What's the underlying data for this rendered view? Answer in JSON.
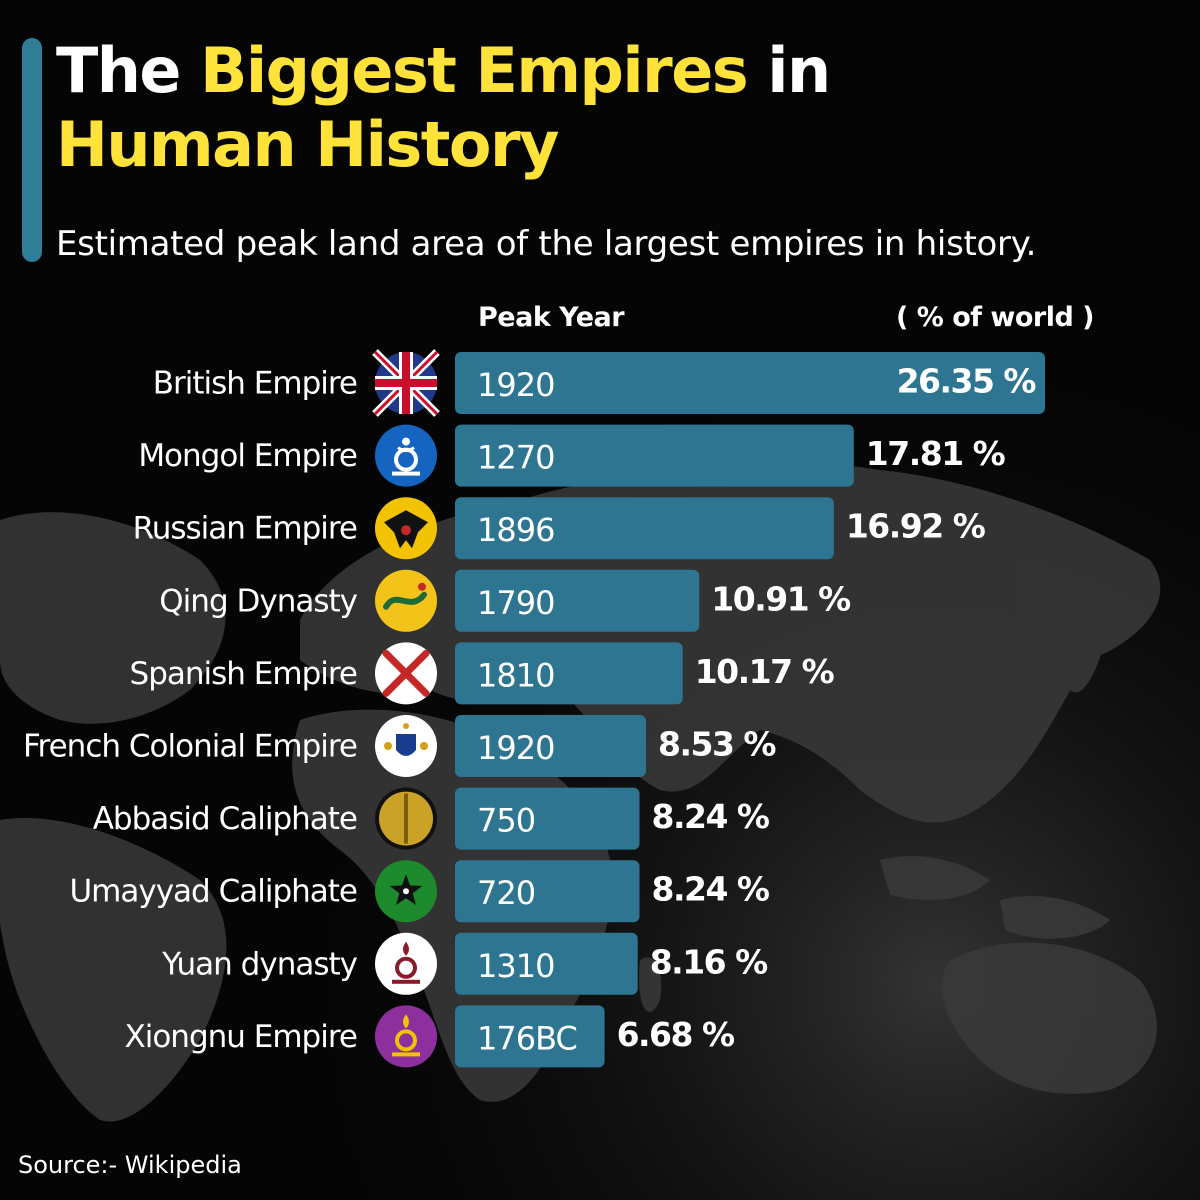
{
  "title": {
    "part1": "The ",
    "part2": "Biggest Empires",
    "part3": " in",
    "part4": "Human History"
  },
  "subtitle": "Estimated peak land area of the largest empires in history.",
  "column_headers": {
    "peak_year": "Peak Year",
    "percent": "( % of world )"
  },
  "source": "Source:- Wikipedia",
  "colors": {
    "bar": "#2d7590",
    "title_accent": "#ffe23a",
    "side_accent": "#2f7d99",
    "background": "#050505",
    "map": "#3a3a3a"
  },
  "chart_data": {
    "type": "bar",
    "orientation": "horizontal",
    "title": "The Biggest Empires in Human History",
    "subtitle": "Estimated peak land area of the largest empires in history.",
    "xlabel": "( % of world )",
    "xlim": [
      0,
      26.35
    ],
    "grid": false,
    "legend": "none",
    "categories": [
      "British Empire",
      "Mongol Empire",
      "Russian Empire",
      "Qing Dynasty",
      "Spanish Empire",
      "French Colonial Empire",
      "Abbasid Caliphate",
      "Umayyad Caliphate",
      "Yuan dynasty",
      "Xiongnu Empire"
    ],
    "values": [
      26.35,
      17.81,
      16.92,
      10.91,
      10.17,
      8.53,
      8.24,
      8.24,
      8.16,
      6.68
    ],
    "value_labels": [
      "26.35 %",
      "17.81 %",
      "16.92 %",
      "10.91 %",
      "10.17 %",
      "8.53 %",
      "8.24 %",
      "8.24 %",
      "8.16 %",
      "6.68 %"
    ],
    "peak_years": [
      "1920",
      "1270",
      "1896",
      "1790",
      "1810",
      "1920",
      "750",
      "720",
      "1310",
      "176BC"
    ],
    "flag_icons": [
      "union-jack-flag-icon",
      "mongol-soyombo-flag-icon",
      "russian-eagle-flag-icon",
      "qing-dragon-flag-icon",
      "burgundy-cross-flag-icon",
      "french-royal-flag-icon",
      "abbasid-flag-icon",
      "umayyad-star-flag-icon",
      "yuan-symbol-flag-icon",
      "xiongnu-soyombo-flag-icon"
    ]
  }
}
